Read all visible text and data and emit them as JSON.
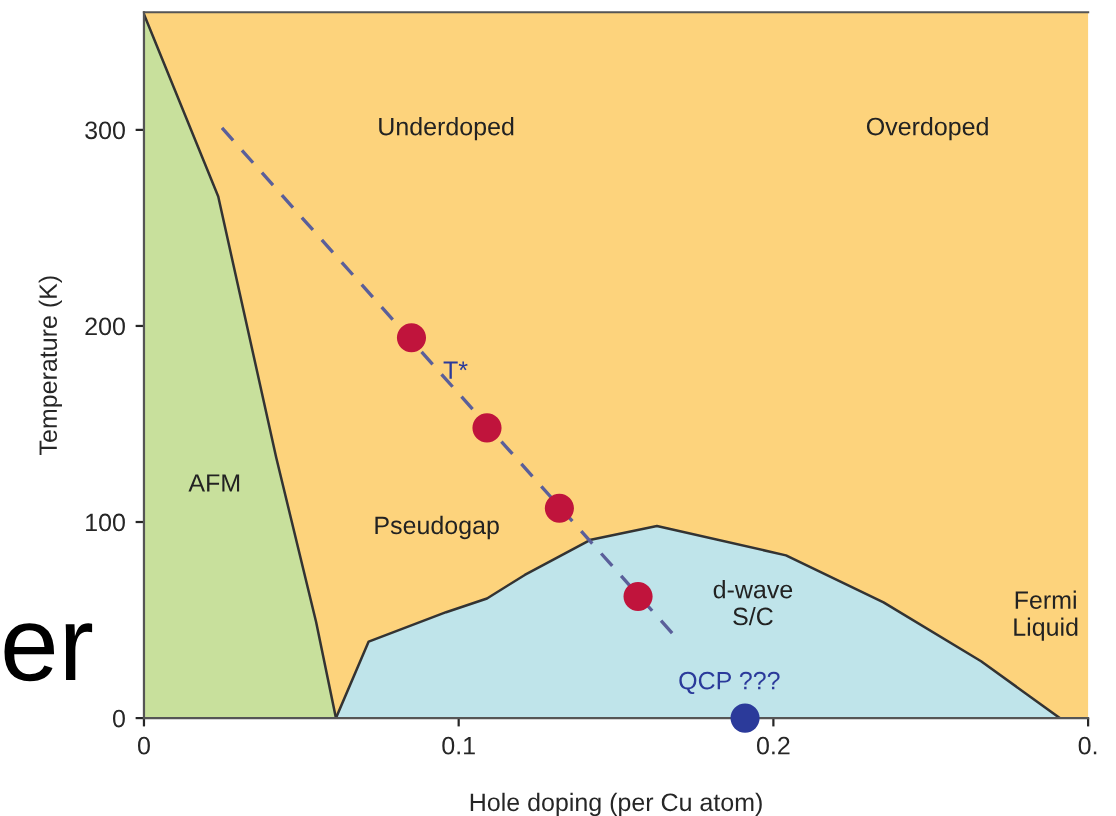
{
  "chart_data": {
    "type": "area",
    "xlabel": "Hole doping (per Cu atom)",
    "ylabel": "Temperature (K)",
    "xlim": [
      0,
      0.3
    ],
    "ylim": [
      0,
      360
    ],
    "xticks": [
      0,
      0.1,
      0.2,
      {
        "value": 0.3,
        "label": "0."
      }
    ],
    "yticks": [
      0,
      100,
      200,
      300
    ],
    "grid": false,
    "series": [
      {
        "color": "#c8e09c",
        "x": [
          0,
          0.0236,
          0.042,
          0.0547,
          0.061
        ],
        "values": [
          359,
          266,
          133,
          49,
          0
        ]
      },
      {
        "color": "#bfe4ea",
        "x": [
          0.061,
          0.0714,
          0.096,
          0.109,
          0.121,
          0.142,
          0.163,
          0.204,
          0.235,
          0.266,
          0.291
        ],
        "values": [
          0,
          39,
          54,
          61,
          73,
          91,
          98,
          83,
          59,
          29,
          0
        ]
      },
      {
        "type": "line",
        "color": "#5a5f9a",
        "line_style": "dashed",
        "marker": "none",
        "x": [
          0.0248,
          0.168
        ],
        "values": [
          301,
          43
        ]
      },
      {
        "type": "scatter",
        "color": "#c0143c",
        "marker": "circle",
        "x": [
          0.085,
          0.109,
          0.132,
          0.157
        ],
        "values": [
          194,
          148,
          107,
          62
        ]
      },
      {
        "type": "scatter",
        "color": "#2b3a9a",
        "marker": "circle",
        "x": [
          0.191
        ],
        "values": [
          0
        ]
      }
    ],
    "annotations": [
      "Underdoped",
      "Overdoped",
      "AFM",
      "Pseudogap",
      "T*",
      "d-wave\nS/C",
      "Fermi\nLiquid",
      "QCP ???",
      "er"
    ]
  }
}
